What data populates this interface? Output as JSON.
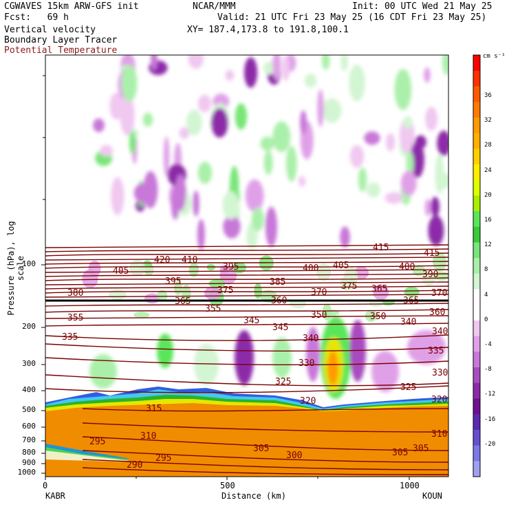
{
  "header": {
    "model": "CGWAVES 15km ARW-GFS init",
    "org": "NCAR/MMM",
    "init": "Init: 00 UTC Wed 21 May 25",
    "fcst": "Fcst:   69 h",
    "valid": "Valid: 21 UTC Fri 23 May 25 (16 CDT Fri 23 May 25)",
    "field1": "Vertical velocity",
    "field2": "Boundary Layer Tracer",
    "field3": "Potential Temperature",
    "xy": "XY= 187.4,173.8 to 191.8,100.1"
  },
  "axes": {
    "ylabel": "Pressure (hPa), log scale",
    "xlabel": "Distance (km)",
    "yticks": [
      "100",
      "200",
      "300",
      "400",
      "500",
      "600",
      "700",
      "800",
      "900",
      "1000"
    ],
    "xticks": [
      "0",
      "500",
      "1000"
    ],
    "left_end": "KABR",
    "right_end": "KOUN"
  },
  "colorbar": {
    "units": "cm s⁻¹",
    "labels": [
      "36",
      "32",
      "28",
      "24",
      "20",
      "16",
      "12",
      "8",
      "4",
      "0",
      "-4",
      "-8",
      "-12",
      "-16",
      "-20"
    ],
    "colors": [
      "#ff0000",
      "#ff3000",
      "#ff5a00",
      "#ff7a00",
      "#ff9a00",
      "#ffb000",
      "#ffd000",
      "#ffee00",
      "#ddff00",
      "#a8f000",
      "#5ae65a",
      "#3cc83c",
      "#78e678",
      "#aaf0aa",
      "#d2f5d2",
      "#ffffff",
      "#ffffff",
      "#f0c8f0",
      "#e0a0e8",
      "#c878d8",
      "#a84cc0",
      "#8c2aa8",
      "#6e1090",
      "#5a2ab0",
      "#6650d0",
      "#7c78e6",
      "#a0a0f0"
    ]
  },
  "contours": {
    "theta_labels": [
      "420",
      "415",
      "410",
      "405",
      "400",
      "395",
      "390",
      "385",
      "380",
      "375",
      "370",
      "365",
      "360",
      "355",
      "350",
      "345",
      "340",
      "335",
      "330",
      "325",
      "320",
      "315",
      "310",
      "305",
      "300",
      "295",
      "290"
    ]
  }
}
